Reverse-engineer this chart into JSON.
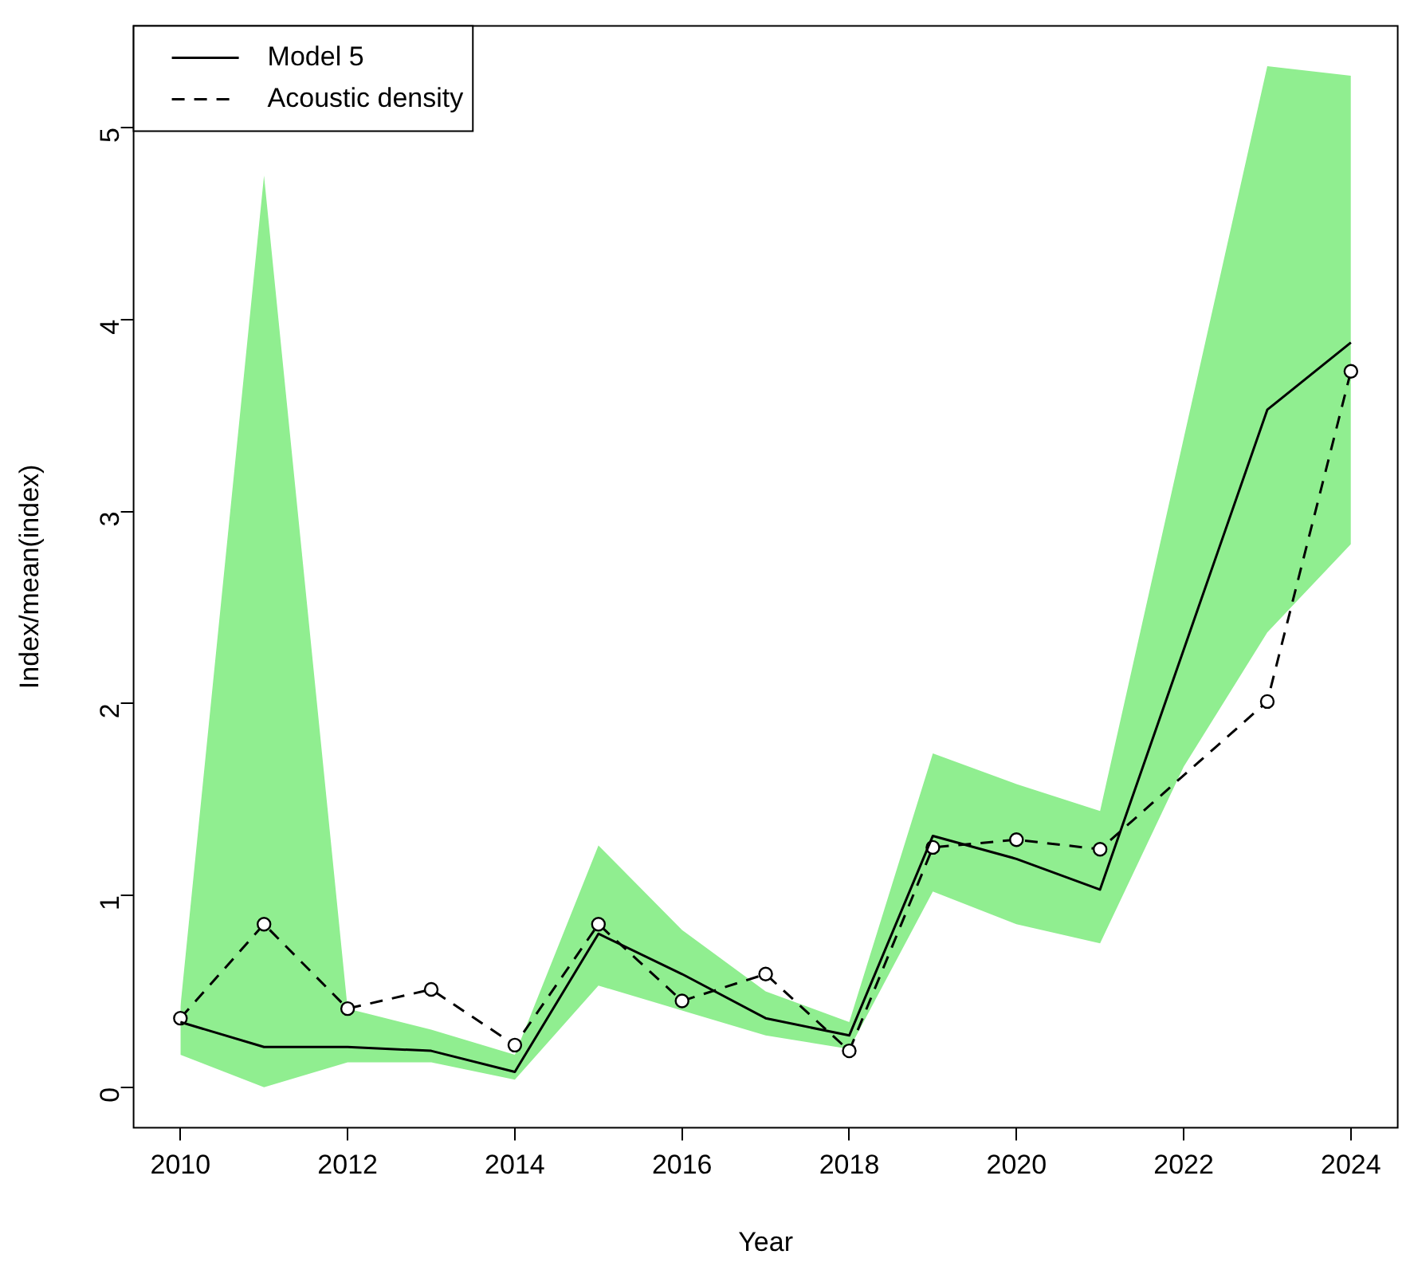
{
  "chart_data": {
    "type": "line",
    "xlabel": "Year",
    "ylabel": "Index/mean(index)",
    "x": [
      2010,
      2011,
      2012,
      2013,
      2014,
      2015,
      2016,
      2017,
      2018,
      2019,
      2020,
      2021,
      2022,
      2023,
      2024
    ],
    "series": [
      {
        "name": "Model 5",
        "color": "#000000",
        "line_style": "solid",
        "marker": "none",
        "values": [
          0.34,
          0.21,
          0.21,
          0.19,
          0.08,
          0.8,
          0.59,
          0.36,
          0.27,
          1.31,
          1.19,
          1.03,
          2.28,
          3.53,
          3.88
        ],
        "lower": [
          0.17,
          0.0,
          0.13,
          0.13,
          0.04,
          0.53,
          0.4,
          0.27,
          0.2,
          1.02,
          0.85,
          0.75,
          1.67,
          2.37,
          2.83
        ],
        "upper": [
          0.42,
          4.75,
          0.41,
          0.3,
          0.17,
          1.26,
          0.82,
          0.5,
          0.34,
          1.74,
          1.58,
          1.44,
          3.38,
          5.32,
          5.27
        ]
      },
      {
        "name": "Acoustic density",
        "color": "#000000",
        "line_style": "dashed",
        "marker": "circle",
        "values": [
          0.36,
          0.85,
          0.41,
          0.51,
          0.22,
          0.85,
          0.45,
          0.59,
          0.19,
          1.25,
          1.29,
          1.24,
          null,
          2.01,
          3.73
        ]
      }
    ],
    "xlim": [
      2009.44,
      2024.56
    ],
    "ylim": [
      -0.21,
      5.53
    ],
    "xticks": [
      2010,
      2012,
      2014,
      2016,
      2018,
      2020,
      2022,
      2024
    ],
    "yticks": [
      0,
      1,
      2,
      3,
      4,
      5
    ],
    "grid": false,
    "legend": "top left"
  }
}
